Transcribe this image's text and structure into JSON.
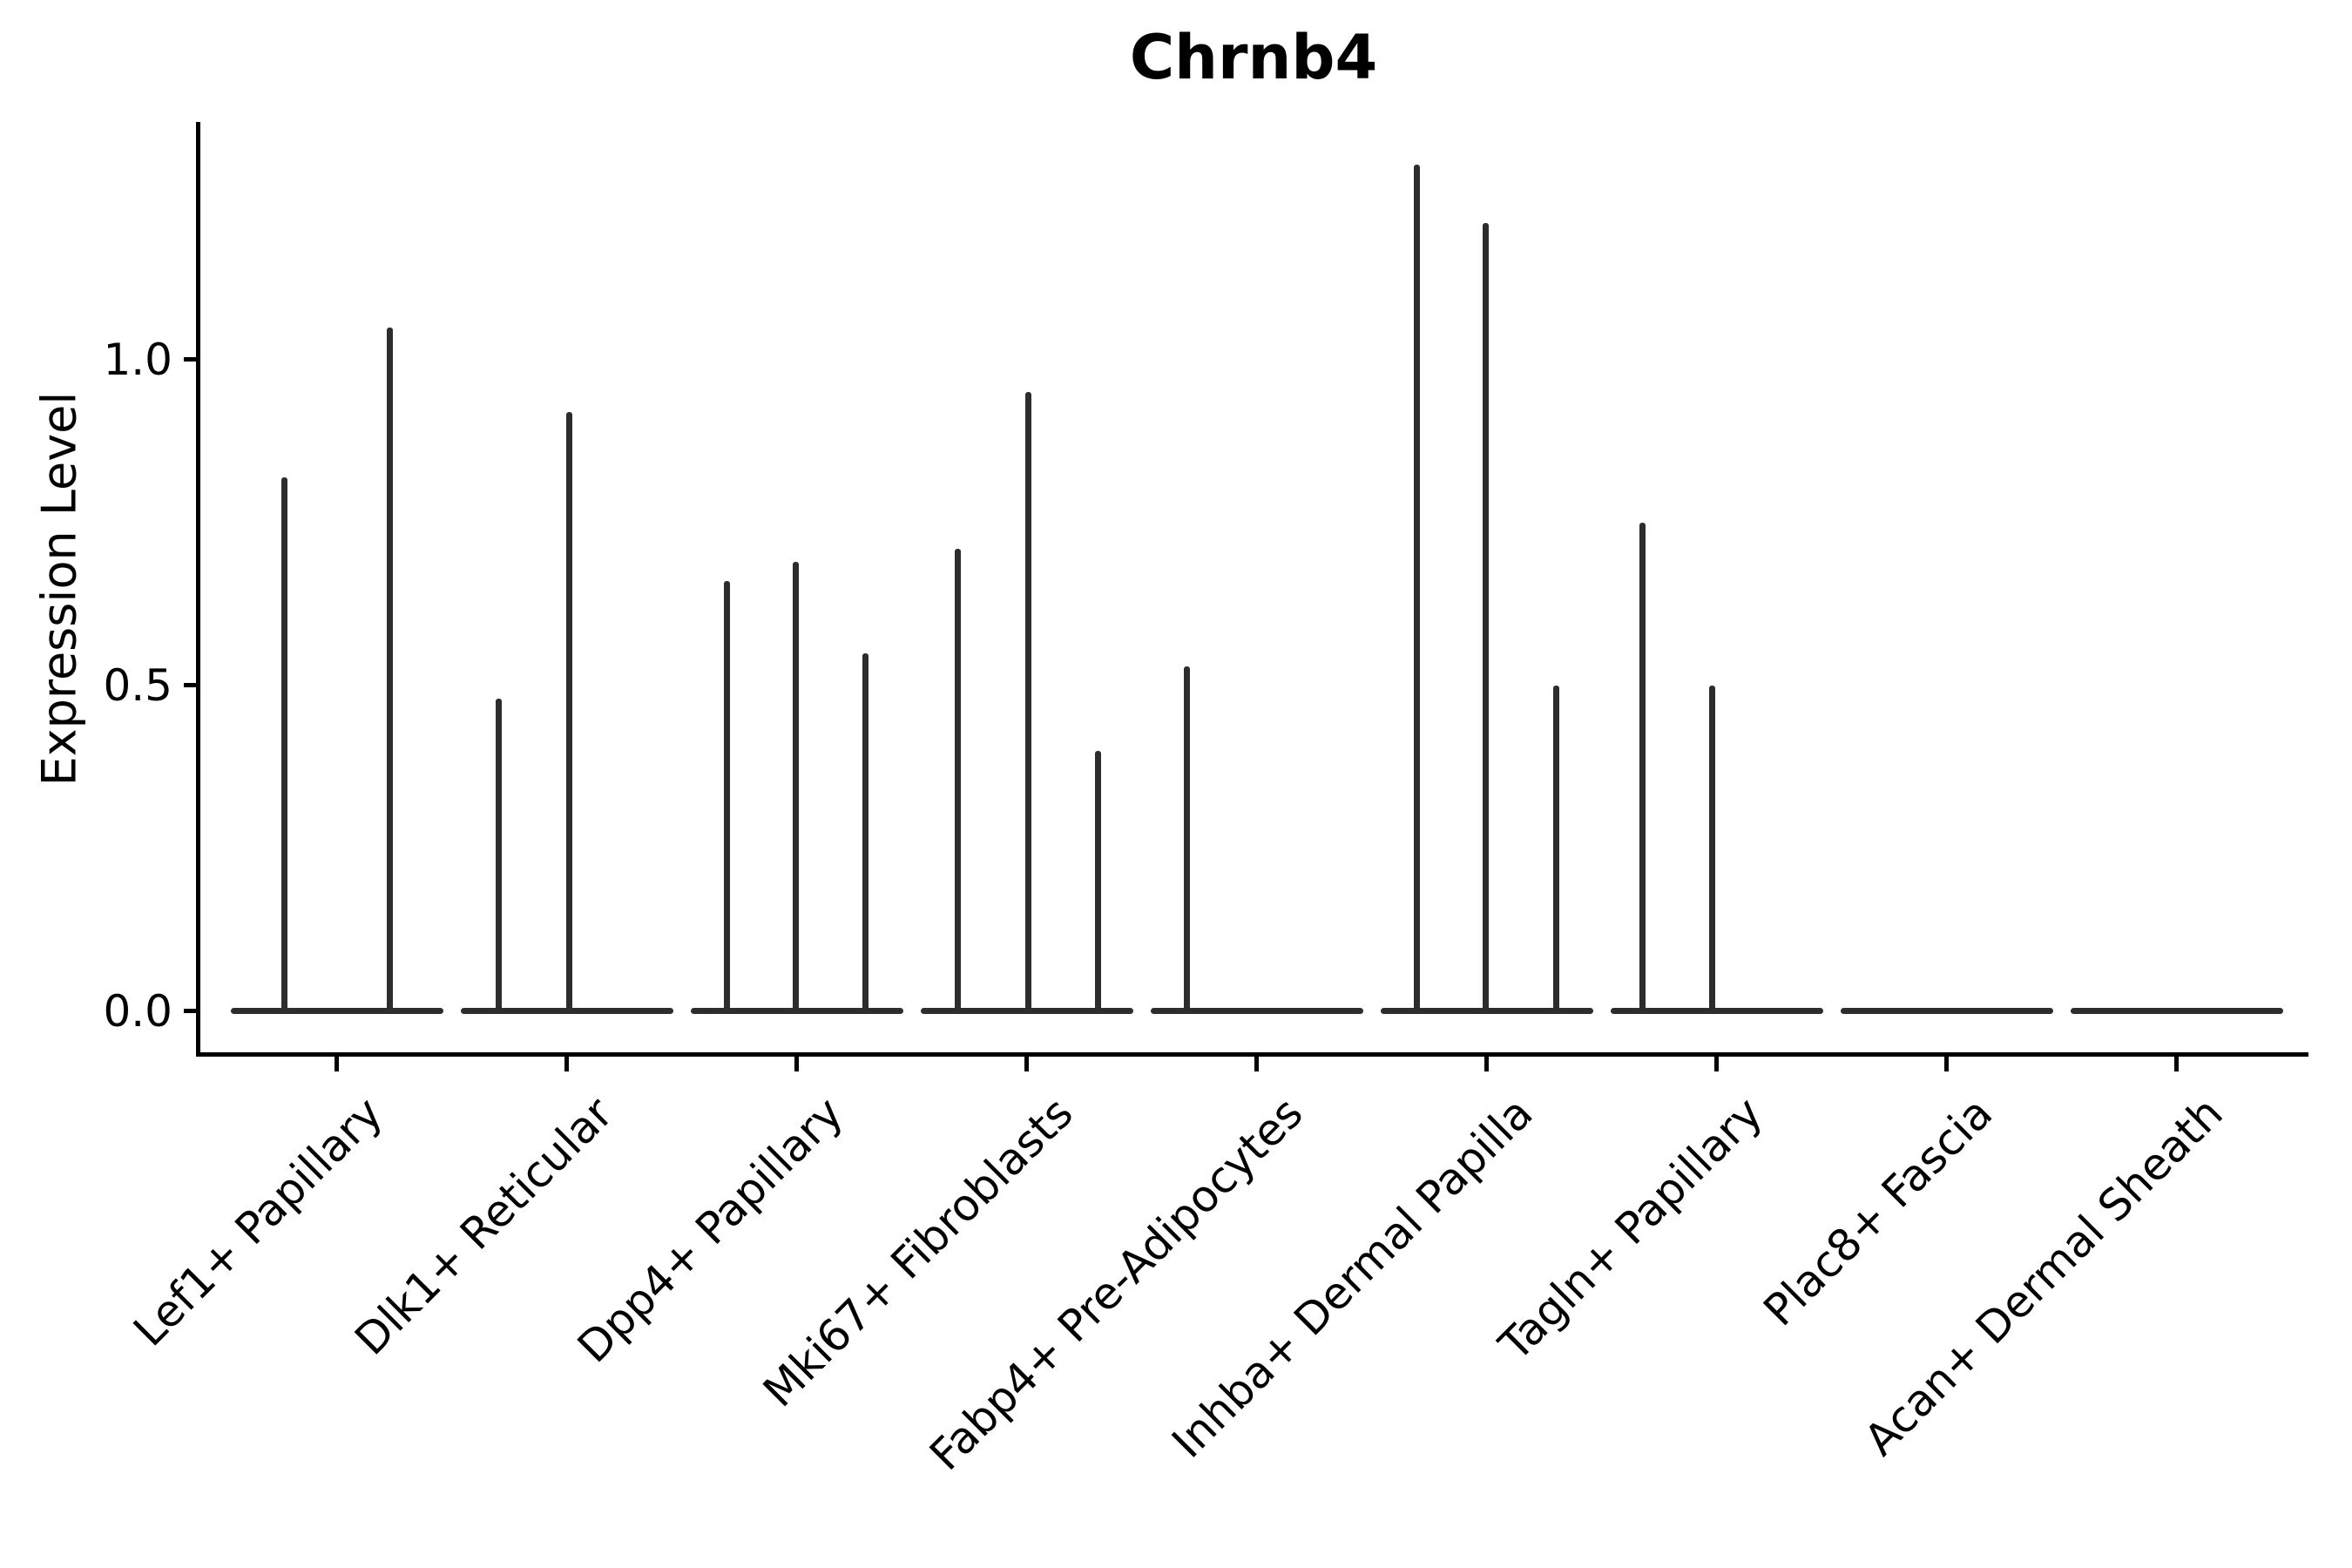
{
  "title": "Chrnb4",
  "y_axis": {
    "label": "Expression Level"
  },
  "chart_data": {
    "type": "violin",
    "title": "Chrnb4",
    "xlabel": "",
    "ylabel": "Expression Level",
    "ylim": [
      -0.065,
      1.365
    ],
    "yticks": [
      0.0,
      0.5,
      1.0
    ],
    "grid": false,
    "legend": false,
    "categories": [
      "Lef1+ Papillary",
      "Dlk1+ Reticular",
      "Dpp4+ Papillary",
      "Mki67+ Fibroblasts",
      "Fabp4+ Pre-Adipocytes",
      "Inhba+ Dermal Papilla",
      "Tagln+ Papillary",
      "Plac8+ Fascia",
      "Acan+ Dermal Sheath"
    ],
    "description": "Expression mostly zero in all clusters; each violin collapses to a flat baseline at 0 with thin vertical spikes reaching the maximum expression values listed per cluster.",
    "violins": [
      {
        "category": "Lef1+ Papillary",
        "spikes": [
          {
            "dx": -61,
            "value": 0.82
          },
          {
            "dx": 60,
            "value": 1.05
          }
        ]
      },
      {
        "category": "Dlk1+ Reticular",
        "spikes": [
          {
            "dx": -79,
            "value": 0.48
          },
          {
            "dx": 2,
            "value": 0.92
          }
        ]
      },
      {
        "category": "Dpp4+ Papillary",
        "spikes": [
          {
            "dx": -81,
            "value": 0.66
          },
          {
            "dx": -2,
            "value": 0.69
          },
          {
            "dx": 78,
            "value": 0.55
          }
        ]
      },
      {
        "category": "Mki67+ Fibroblasts",
        "spikes": [
          {
            "dx": -80,
            "value": 0.71
          },
          {
            "dx": 1,
            "value": 0.95
          },
          {
            "dx": 81,
            "value": 0.4
          }
        ]
      },
      {
        "category": "Fabp4+ Pre-Adipocytes",
        "spikes": [
          {
            "dx": -81,
            "value": 0.53
          }
        ]
      },
      {
        "category": "Inhba+ Dermal Papilla",
        "spikes": [
          {
            "dx": -81,
            "value": 1.3
          },
          {
            "dx": -2,
            "value": 1.21
          },
          {
            "dx": 79,
            "value": 0.5
          }
        ]
      },
      {
        "category": "Tagln+ Papillary",
        "spikes": [
          {
            "dx": -86,
            "value": 0.75
          },
          {
            "dx": -6,
            "value": 0.5
          }
        ]
      },
      {
        "category": "Plac8+ Fascia",
        "spikes": []
      },
      {
        "category": "Acan+ Dermal Sheath",
        "spikes": []
      }
    ]
  },
  "colors": {
    "violin_line": "#2d2d2d",
    "axis": "#000000",
    "text": "#000000",
    "background": "#ffffff"
  }
}
